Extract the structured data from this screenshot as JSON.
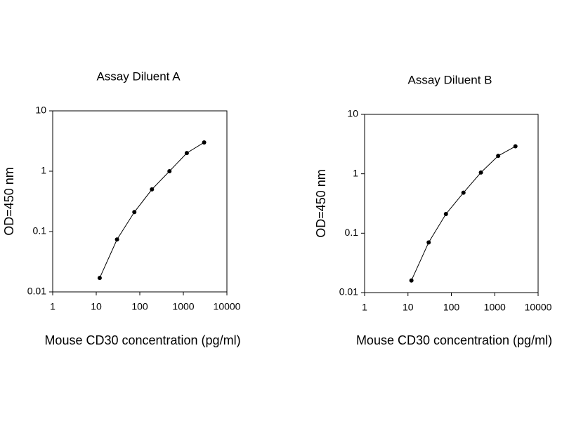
{
  "chart_data": [
    {
      "type": "line",
      "title": "Assay Diluent A",
      "x_label": "Mouse CD30 concentration (pg/ml)",
      "y_label": "OD=450 nm",
      "x": [
        12,
        30,
        75,
        190,
        480,
        1200,
        3000
      ],
      "series": [
        {
          "color": "#000000",
          "values": [
            0.017,
            0.074,
            0.21,
            0.5,
            1.0,
            2.0,
            3.0
          ]
        }
      ],
      "xscale": "log",
      "yscale": "log",
      "xlim": [
        1,
        10000
      ],
      "xticks": [
        1,
        10,
        100,
        1000,
        10000
      ],
      "ylim": [
        0.01,
        10
      ],
      "yticks": [
        0.01,
        0.1,
        1,
        10
      ]
    },
    {
      "type": "line",
      "title": "Assay Diluent B",
      "x_label": "Mouse CD30 concentration (pg/ml)",
      "y_label": "OD=450 nm",
      "x": [
        12,
        30,
        75,
        190,
        480,
        1200,
        3000
      ],
      "series": [
        {
          "color": "#000000",
          "values": [
            0.016,
            0.07,
            0.21,
            0.48,
            1.05,
            2.0,
            2.9
          ]
        }
      ],
      "xscale": "log",
      "yscale": "log",
      "xlim": [
        1,
        10000
      ],
      "xticks": [
        1,
        10,
        100,
        1000,
        10000
      ],
      "ylim": [
        0.01,
        10
      ],
      "yticks": [
        0.01,
        0.1,
        1,
        10
      ]
    }
  ]
}
